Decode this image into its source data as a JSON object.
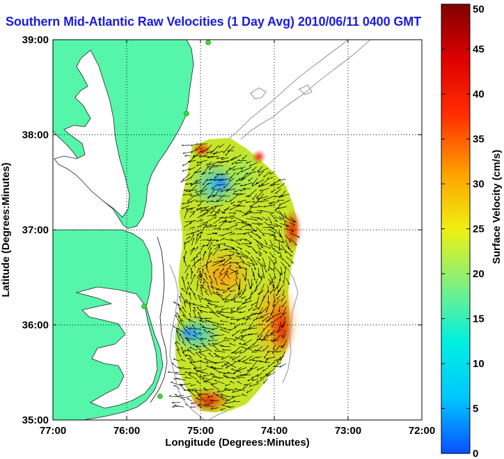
{
  "title": "Southern Mid-Atlantic Raw Velocities (1 Day Avg) 2010/06/11 0400 GMT",
  "map": {
    "xlabel": "Longitude (Degrees:Minutes)",
    "ylabel": "Latitude (Degrees:Minutes)",
    "x_ticks": [
      "77:00",
      "76:00",
      "75:00",
      "74:00",
      "73:00",
      "72:00"
    ],
    "y_ticks": [
      "39:00",
      "38:00",
      "37:00",
      "36:00",
      "35:00"
    ],
    "land_color": "#55f5aa",
    "sea_color": "#ffffff",
    "station_color": "#33dd33"
  },
  "colorbar": {
    "label": "Surface Velocity (cm/s)",
    "ticks": [
      "0",
      "5",
      "10",
      "15",
      "20",
      "25",
      "30",
      "35",
      "40",
      "45",
      "50"
    ],
    "min": 0,
    "max": 50,
    "colors": [
      "#0a50ff",
      "#00c8ff",
      "#00f0e0",
      "#80f080",
      "#f0f010",
      "#ffa000",
      "#ff3000",
      "#e00000",
      "#800000"
    ]
  }
}
